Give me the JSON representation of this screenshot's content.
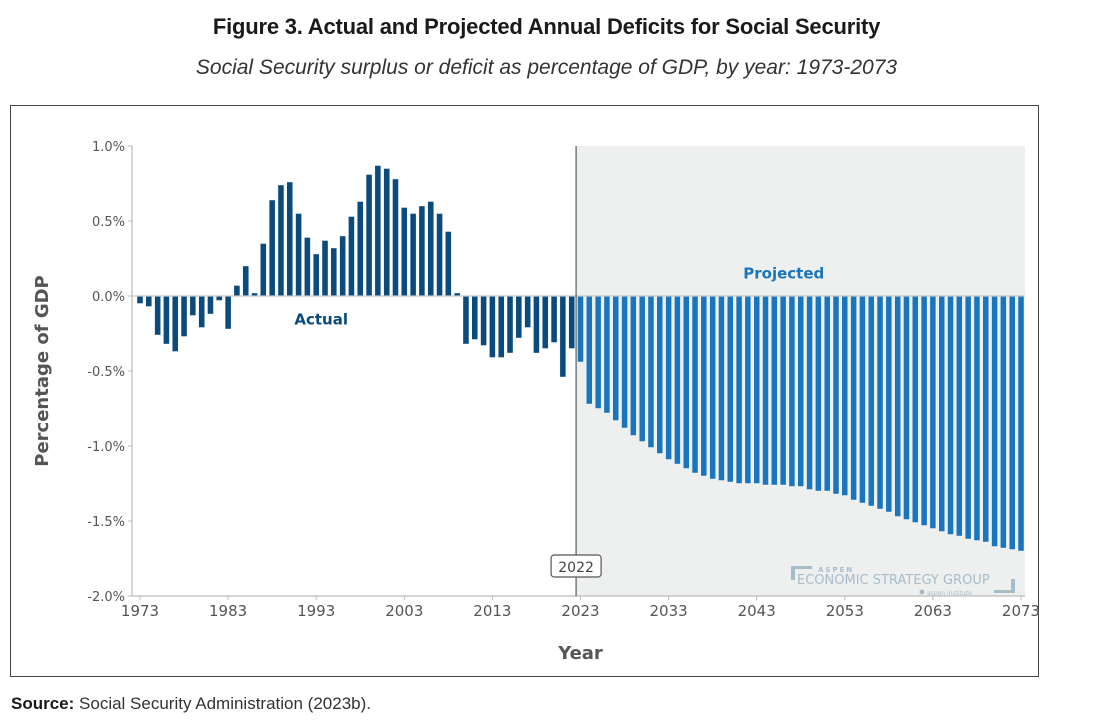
{
  "figure": {
    "title": "Figure 3. Actual and Projected Annual Deficits for Social Security",
    "subtitle": "Social Security surplus or deficit as percentage of GDP, by year: 1973-2073",
    "source_label": "Source:",
    "source_text": " Social Security Administration (2023b)."
  },
  "logo": {
    "top": "ASPEN",
    "main": "ECONOMIC STRATEGY GROUP",
    "sub": "aspen institute"
  },
  "colors": {
    "actual": "#0a4a7c",
    "projected": "#1b75bc",
    "projected_bg": "#eef0f0",
    "axis": "#bbbbbb",
    "divider": "#666666"
  },
  "chart_data": {
    "type": "bar",
    "title": "Figure 3. Actual and Projected Annual Deficits for Social Security",
    "subtitle": "Social Security surplus or deficit as percentage of GDP, by year: 1973-2073",
    "xlabel": "Year",
    "ylabel": "Percentage of GDP",
    "ylim": [
      -2.0,
      1.0
    ],
    "xlim": [
      1973,
      2073
    ],
    "yticks": [
      1.0,
      0.5,
      0.0,
      -0.5,
      -1.0,
      -1.5,
      -2.0
    ],
    "ytick_labels": [
      "1.0%",
      "0.5%",
      "0.0%",
      "-0.5%",
      "-1.0%",
      "-1.5%",
      "-2.0%"
    ],
    "xticks": [
      1973,
      1983,
      1993,
      2003,
      2013,
      2023,
      2033,
      2043,
      2053,
      2063,
      2073
    ],
    "xtick_labels": [
      "1973",
      "1983",
      "1993",
      "2003",
      "2013",
      "2023",
      "2033",
      "2043",
      "2053",
      "2063",
      "2073"
    ],
    "grid": false,
    "divider_year": 2022,
    "divider_label": "2022",
    "annotations": [
      {
        "text": "Actual",
        "x": 1993,
        "y": -0.15
      },
      {
        "text": "Projected",
        "x": 2048,
        "y": 0.15
      }
    ],
    "series": [
      {
        "name": "Actual",
        "start_year": 1973,
        "values": [
          -0.05,
          -0.07,
          -0.26,
          -0.32,
          -0.37,
          -0.27,
          -0.13,
          -0.21,
          -0.12,
          -0.03,
          -0.22,
          0.07,
          0.2,
          0.02,
          0.35,
          0.64,
          0.74,
          0.76,
          0.55,
          0.39,
          0.28,
          0.37,
          0.32,
          0.4,
          0.53,
          0.63,
          0.81,
          0.87,
          0.85,
          0.78,
          0.59,
          0.55,
          0.6,
          0.63,
          0.55,
          0.43,
          0.02,
          -0.32,
          -0.29,
          -0.33,
          -0.41,
          -0.41,
          -0.38,
          -0.28,
          -0.21,
          -0.38,
          -0.35,
          -0.31,
          -0.54,
          -0.35
        ]
      },
      {
        "name": "Projected",
        "start_year": 2023,
        "values": [
          -0.44,
          -0.72,
          -0.75,
          -0.78,
          -0.83,
          -0.88,
          -0.93,
          -0.97,
          -1.01,
          -1.05,
          -1.09,
          -1.12,
          -1.15,
          -1.18,
          -1.2,
          -1.22,
          -1.23,
          -1.24,
          -1.25,
          -1.25,
          -1.25,
          -1.26,
          -1.26,
          -1.26,
          -1.27,
          -1.27,
          -1.29,
          -1.3,
          -1.3,
          -1.32,
          -1.33,
          -1.36,
          -1.38,
          -1.4,
          -1.42,
          -1.44,
          -1.47,
          -1.49,
          -1.51,
          -1.53,
          -1.55,
          -1.57,
          -1.59,
          -1.6,
          -1.62,
          -1.63,
          -1.64,
          -1.67,
          -1.68,
          -1.69,
          -1.7
        ]
      }
    ]
  }
}
